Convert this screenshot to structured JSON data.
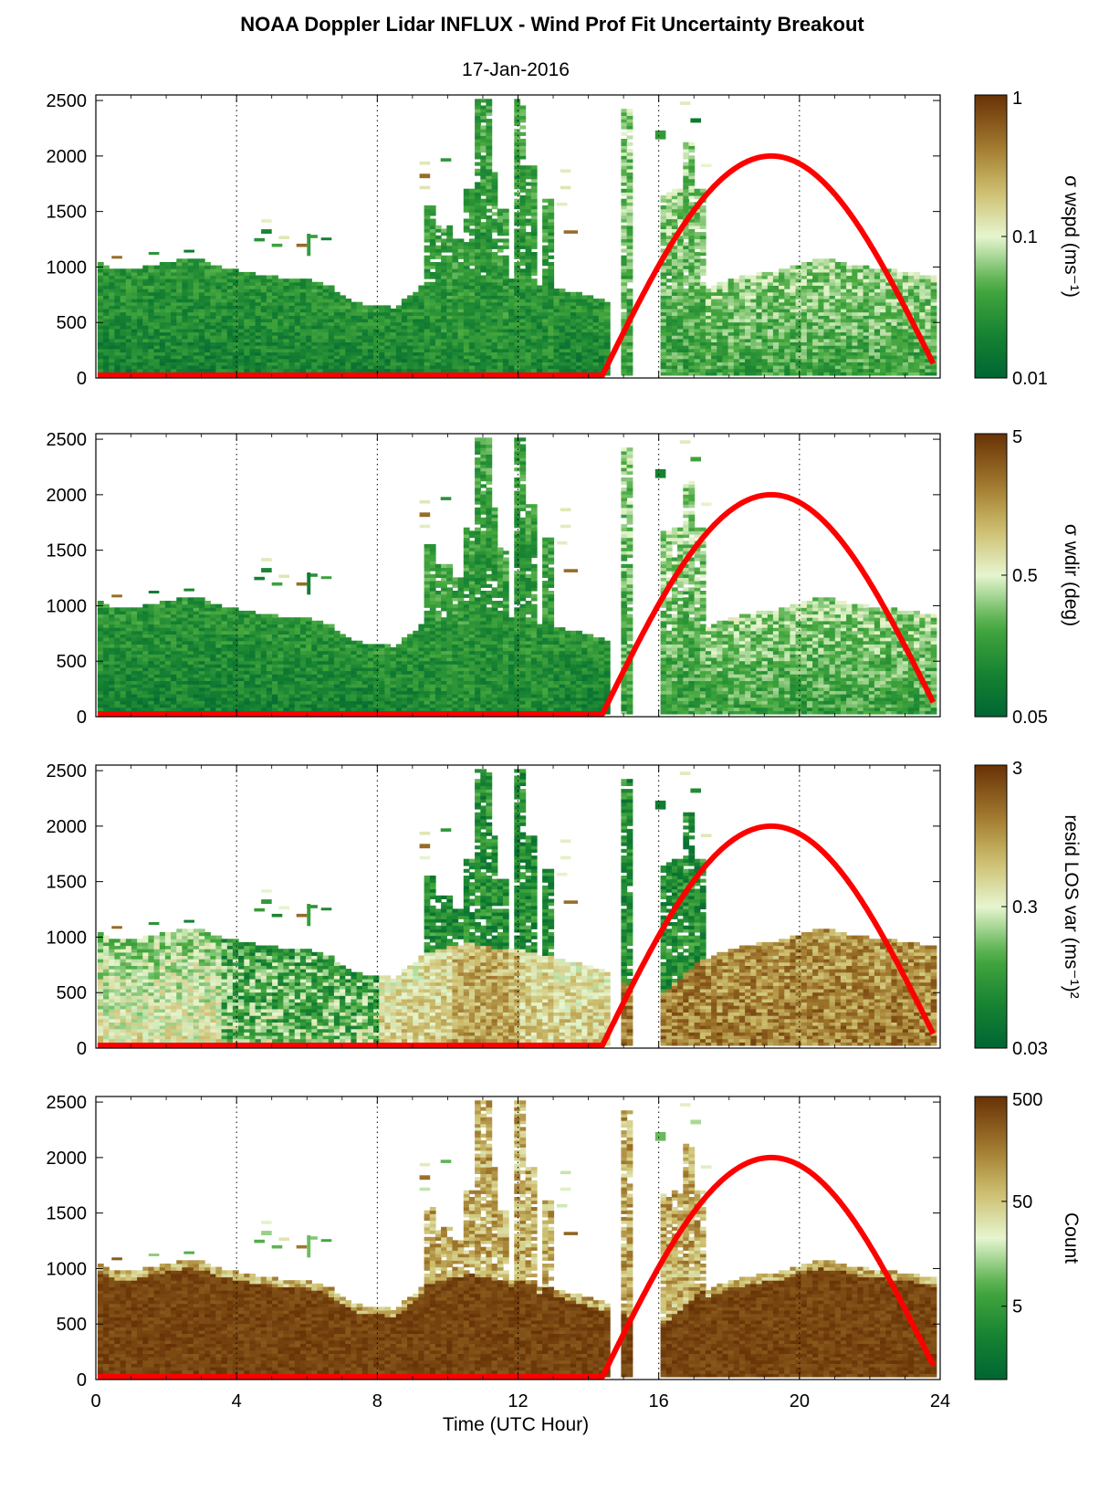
{
  "figure": {
    "title": "NOAA Doppler Lidar INFLUX - Wind Prof Fit Uncertainty Breakout",
    "date": "17-Jan-2016",
    "xlabel": "Time (UTC Hour)"
  },
  "colors": {
    "dark_green": "#006633",
    "mid_green": "#45a83c",
    "light_green": "#e6f5cf",
    "tan": "#b39a3c",
    "dark_brown": "#6b3305",
    "curve": "#ff0000"
  },
  "chart_data": [
    {
      "type": "heatmap",
      "xlim": [
        0,
        24
      ],
      "ylim": [
        0,
        2550
      ],
      "x_ticks": [
        "0",
        "4",
        "8",
        "12",
        "16",
        "20",
        "24"
      ],
      "y_ticks": [
        "0",
        "500",
        "1000",
        "1500",
        "2000",
        "2500"
      ],
      "grid": "dotted vertical at every 4 h",
      "colorbar": {
        "label": "σ wspd (ms⁻¹)",
        "scale": "log",
        "range": [
          0.01,
          1
        ],
        "ticks": [
          "0.01",
          "0.1",
          "1"
        ]
      },
      "profile": "wspd",
      "curve": {
        "peak_x": 19.2,
        "peak_y": 2000,
        "start_x": 14.4,
        "end_x": 23.8,
        "end_y": 130,
        "base_y": 25
      }
    },
    {
      "type": "heatmap",
      "xlim": [
        0,
        24
      ],
      "ylim": [
        0,
        2550
      ],
      "x_ticks": [
        "0",
        "4",
        "8",
        "12",
        "16",
        "20",
        "24"
      ],
      "y_ticks": [
        "0",
        "500",
        "1000",
        "1500",
        "2000",
        "2500"
      ],
      "grid": "dotted vertical at every 4 h",
      "colorbar": {
        "label": "σ wdir (deg)",
        "scale": "log",
        "range": [
          0.05,
          5
        ],
        "ticks": [
          "0.05",
          "0.5",
          "5"
        ]
      },
      "profile": "wdir",
      "curve": {
        "peak_x": 19.2,
        "peak_y": 2000,
        "start_x": 14.4,
        "end_x": 23.8,
        "end_y": 130,
        "base_y": 25
      }
    },
    {
      "type": "heatmap",
      "xlim": [
        0,
        24
      ],
      "ylim": [
        0,
        2550
      ],
      "x_ticks": [
        "0",
        "4",
        "8",
        "12",
        "16",
        "20",
        "24"
      ],
      "y_ticks": [
        "0",
        "500",
        "1000",
        "1500",
        "2000",
        "2500"
      ],
      "grid": "dotted vertical at every 4 h",
      "colorbar": {
        "label": "resid LOS var (ms⁻¹)²",
        "scale": "log",
        "range": [
          0.03,
          3
        ],
        "ticks": [
          "0.03",
          "0.3",
          "3"
        ]
      },
      "profile": "resid",
      "curve": {
        "peak_x": 19.2,
        "peak_y": 2000,
        "start_x": 14.4,
        "end_x": 23.8,
        "end_y": 130,
        "base_y": 25
      }
    },
    {
      "type": "heatmap",
      "xlim": [
        0,
        24
      ],
      "ylim": [
        0,
        2550
      ],
      "x_ticks": [
        "0",
        "4",
        "8",
        "12",
        "16",
        "20",
        "24"
      ],
      "y_ticks": [
        "0",
        "500",
        "1000",
        "1500",
        "2000",
        "2500"
      ],
      "grid": "dotted vertical at every 4 h",
      "colorbar": {
        "label": "Count",
        "scale": "log",
        "range": [
          1,
          500
        ],
        "ticks": [
          "5",
          "50",
          "500"
        ]
      },
      "profile": "count",
      "curve": {
        "peak_x": 19.2,
        "peak_y": 2000,
        "start_x": 14.4,
        "end_x": 23.8,
        "end_y": 130,
        "base_y": 25
      }
    }
  ]
}
